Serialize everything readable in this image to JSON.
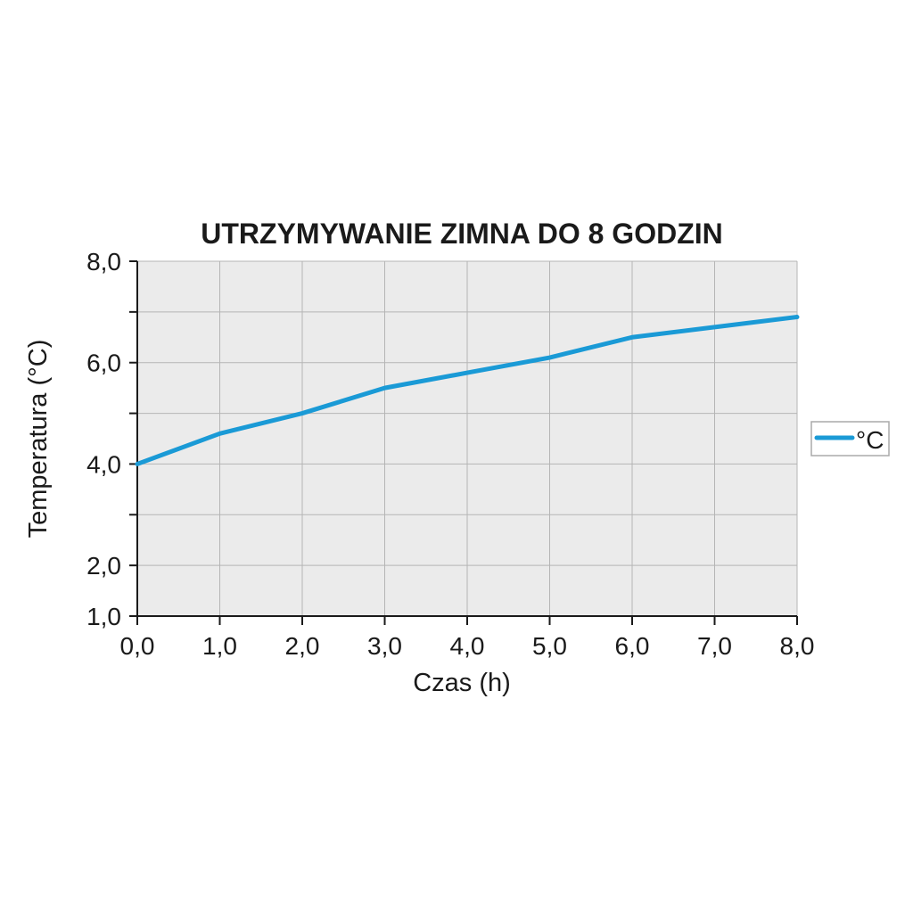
{
  "chart_data": {
    "type": "line",
    "title": "UTRZYMYWANIE ZIMNA DO 8 GODZIN",
    "xlabel": "Czas (h)",
    "ylabel": "Temperatura (°C)",
    "x": [
      0,
      1,
      2,
      3,
      4,
      5,
      6,
      7,
      8
    ],
    "xlim": [
      0,
      8
    ],
    "ylim": [
      1,
      8
    ],
    "x_ticks": [
      0,
      1,
      2,
      3,
      4,
      5,
      6,
      7,
      8
    ],
    "x_tick_labels": [
      "0,0",
      "1,0",
      "2,0",
      "3,0",
      "4,0",
      "5,0",
      "6,0",
      "7,0",
      "8,0"
    ],
    "y_ticks": [
      1,
      2,
      4,
      6,
      8
    ],
    "y_tick_labels": [
      "1,0",
      "2,0",
      "4,0",
      "6,0",
      "8,0"
    ],
    "y_gridlines": [
      1,
      2,
      3,
      4,
      5,
      6,
      7,
      8
    ],
    "grid": true,
    "legend_position": "right",
    "series": [
      {
        "name": "°C",
        "color": "#1a9ad6",
        "values": [
          4.0,
          4.6,
          5.0,
          5.5,
          5.8,
          6.1,
          6.5,
          6.7,
          6.9
        ]
      }
    ],
    "plot_background": "#ebebeb",
    "grid_color": "#b5b5b5"
  }
}
